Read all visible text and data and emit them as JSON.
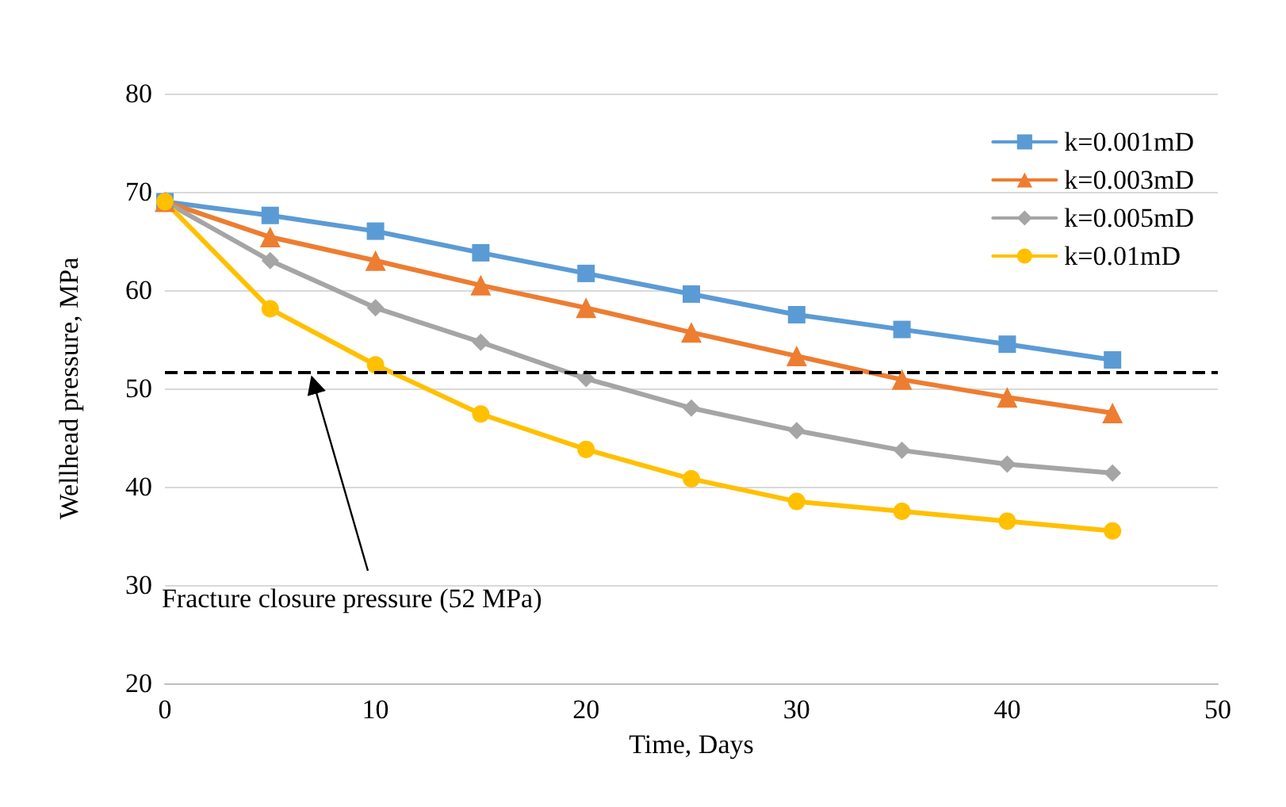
{
  "chart_data": {
    "type": "line",
    "xlabel": "Time, Days",
    "ylabel": "Wellhead pressure, MPa",
    "x": [
      0,
      5,
      10,
      15,
      20,
      25,
      30,
      35,
      40,
      45
    ],
    "series": [
      {
        "name": "k=0.001mD",
        "color": "#5b9bd5",
        "marker": "square",
        "values": [
          69,
          67.6,
          66,
          63.8,
          61.7,
          59.6,
          57.5,
          56,
          54.5,
          52.9
        ]
      },
      {
        "name": "k=0.003mD",
        "color": "#ed7d31",
        "marker": "triangle",
        "values": [
          69,
          65.4,
          63,
          60.5,
          58.2,
          55.7,
          53.3,
          50.9,
          49.1,
          47.5
        ]
      },
      {
        "name": "k=0.005mD",
        "color": "#a5a5a5",
        "marker": "diamond",
        "values": [
          69,
          63,
          58.2,
          54.7,
          51,
          48,
          45.7,
          43.7,
          42.3,
          41.4
        ]
      },
      {
        "name": "k=0.01mD",
        "color": "#ffc000",
        "marker": "circle",
        "values": [
          69,
          58.1,
          52.4,
          47.4,
          43.8,
          40.8,
          38.5,
          37.5,
          36.5,
          35.5
        ]
      }
    ],
    "xlim": [
      0,
      50
    ],
    "xticks": [
      0,
      10,
      20,
      30,
      40,
      50
    ],
    "ylim": [
      20,
      80
    ],
    "yticks": [
      20,
      30,
      40,
      50,
      60,
      70,
      80
    ],
    "grid": "y",
    "legend": "top right",
    "line_style": "solid",
    "ref_lines": [
      {
        "axis": "y",
        "value": 51.6,
        "color": "#000000",
        "line_style": "dashed"
      }
    ],
    "annotations": [
      {
        "text": "Fracture closure pressure (52 MPa)",
        "x": 7,
        "y": 51.6
      }
    ]
  }
}
